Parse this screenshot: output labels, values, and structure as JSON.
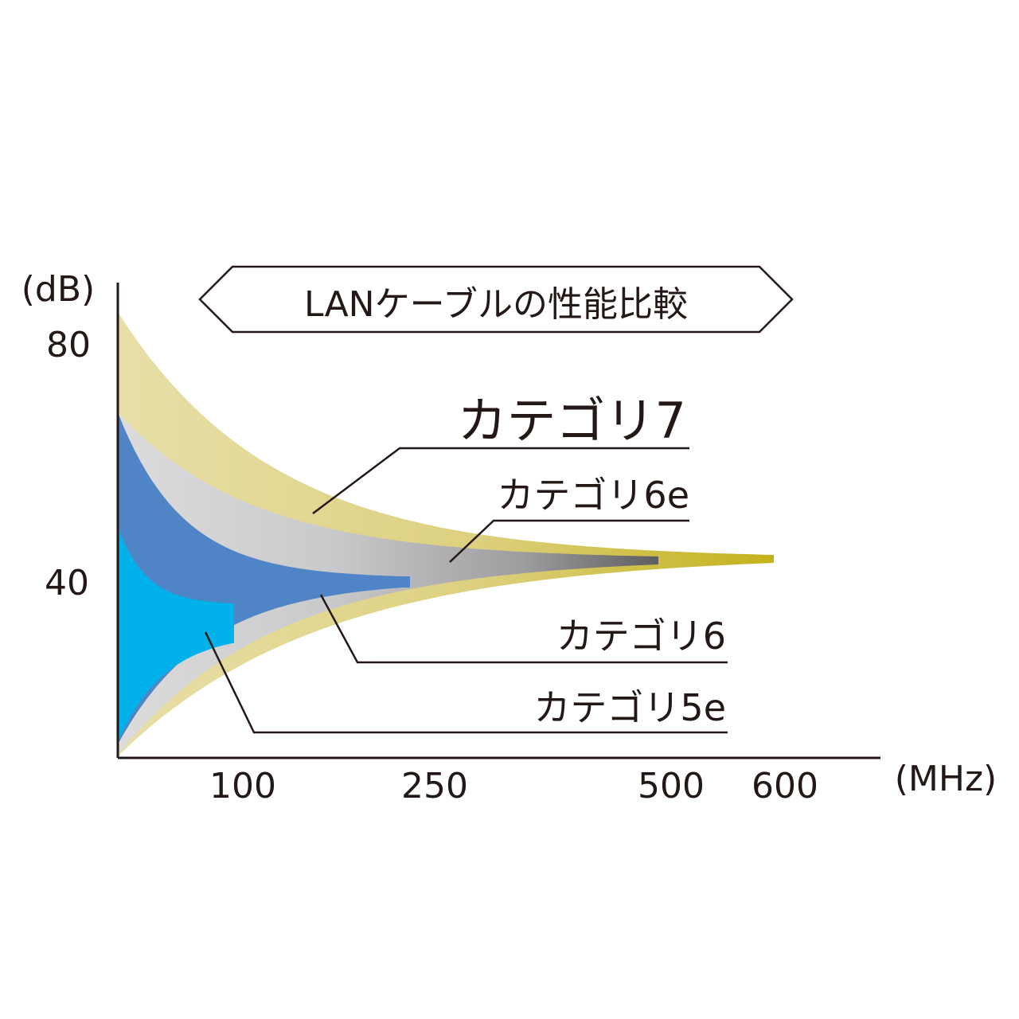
{
  "chart_data": {
    "type": "area",
    "title": "LANケーブルの性能比較",
    "ylabel": "(dB)",
    "xlabel": "(MHz)",
    "y_ticks": [
      "80",
      "40"
    ],
    "x_ticks": [
      "100",
      "250",
      "500",
      "600"
    ],
    "series": [
      {
        "name": "カテゴリ7",
        "max_mhz": 600,
        "color": "#d9c872"
      },
      {
        "name": "カテゴリ6e",
        "max_mhz": 500,
        "color": "#9a9a9c"
      },
      {
        "name": "カテゴリ6",
        "max_mhz": 250,
        "color": "#4f85c6"
      },
      {
        "name": "カテゴリ5e",
        "max_mhz": 100,
        "color": "#00b2e9"
      }
    ]
  }
}
